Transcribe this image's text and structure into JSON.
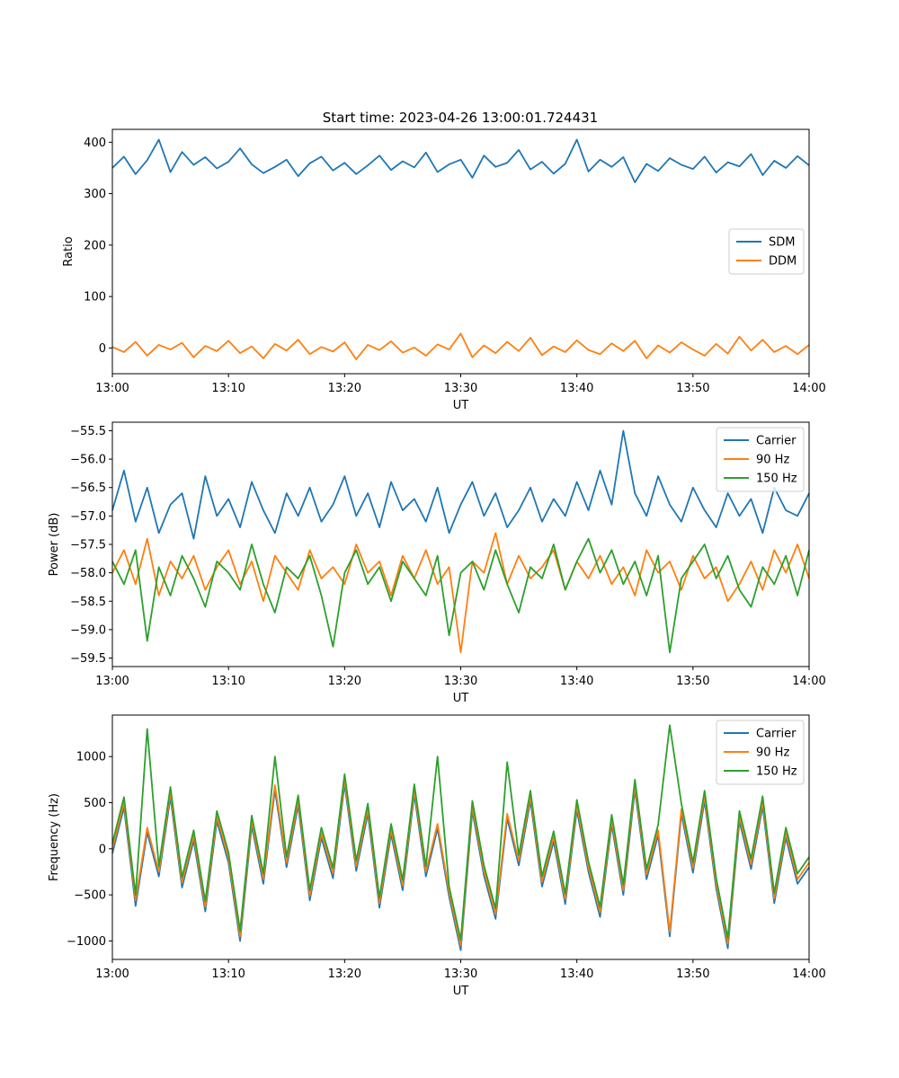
{
  "figure": {
    "title": "Start time: 2023-04-26 13:00:01.724431"
  },
  "colors": {
    "blue": "#1f77b4",
    "orange": "#ff7f0e",
    "green": "#2ca02c"
  },
  "chart_data": [
    {
      "type": "line",
      "title": "Start time: 2023-04-26 13:00:01.724431",
      "xlabel": "UT",
      "ylabel": "Ratio",
      "xlim": [
        "13:00",
        "14:00"
      ],
      "xticks": [
        "13:00",
        "13:10",
        "13:20",
        "13:30",
        "13:40",
        "13:50",
        "14:00"
      ],
      "ylim": [
        -50,
        425
      ],
      "yticks": [
        0,
        100,
        200,
        300,
        400
      ],
      "grid": false,
      "legend": "center-right",
      "x": [
        "13:00",
        "13:01",
        "13:02",
        "13:03",
        "13:04",
        "13:05",
        "13:06",
        "13:07",
        "13:08",
        "13:09",
        "13:10",
        "13:11",
        "13:12",
        "13:13",
        "13:14",
        "13:15",
        "13:16",
        "13:17",
        "13:18",
        "13:19",
        "13:20",
        "13:21",
        "13:22",
        "13:23",
        "13:24",
        "13:25",
        "13:26",
        "13:27",
        "13:28",
        "13:29",
        "13:30",
        "13:31",
        "13:32",
        "13:33",
        "13:34",
        "13:35",
        "13:36",
        "13:37",
        "13:38",
        "13:39",
        "13:40",
        "13:41",
        "13:42",
        "13:43",
        "13:44",
        "13:45",
        "13:46",
        "13:47",
        "13:48",
        "13:49",
        "13:50",
        "13:51",
        "13:52",
        "13:53",
        "13:54",
        "13:55",
        "13:56",
        "13:57",
        "13:58",
        "13:59",
        "14:00"
      ],
      "series": [
        {
          "name": "SDM",
          "color": "#1f77b4",
          "values": [
            350,
            372,
            338,
            365,
            405,
            342,
            381,
            356,
            371,
            349,
            362,
            388,
            357,
            340,
            352,
            366,
            334,
            359,
            372,
            345,
            360,
            338,
            355,
            374,
            346,
            363,
            351,
            380,
            342,
            357,
            366,
            331,
            374,
            352,
            360,
            385,
            347,
            362,
            339,
            358,
            405,
            343,
            366,
            352,
            371,
            322,
            358,
            344,
            369,
            356,
            348,
            372,
            341,
            361,
            353,
            377,
            336,
            364,
            350,
            373,
            355
          ]
        },
        {
          "name": "DDM",
          "color": "#ff7f0e",
          "values": [
            2,
            -8,
            12,
            -15,
            6,
            -3,
            10,
            -18,
            4,
            -6,
            14,
            -10,
            3,
            -20,
            8,
            -5,
            16,
            -12,
            2,
            -7,
            11,
            -22,
            6,
            -4,
            13,
            -9,
            1,
            -15,
            7,
            -3,
            28,
            -18,
            5,
            -10,
            12,
            -6,
            20,
            -14,
            3,
            -8,
            15,
            -4,
            -12,
            9,
            -6,
            14,
            -20,
            5,
            -9,
            11,
            -3,
            -15,
            8,
            -11,
            22,
            -5,
            16,
            -8,
            4,
            -12,
            6
          ]
        }
      ]
    },
    {
      "type": "line",
      "xlabel": "UT",
      "ylabel": "Power (dB)",
      "xlim": [
        "13:00",
        "14:00"
      ],
      "xticks": [
        "13:00",
        "13:10",
        "13:20",
        "13:30",
        "13:40",
        "13:50",
        "14:00"
      ],
      "ylim": [
        -59.65,
        -55.35
      ],
      "yticks": [
        -55.5,
        -56.0,
        -56.5,
        -57.0,
        -57.5,
        -58.0,
        -58.5,
        -59.0,
        -59.5
      ],
      "grid": false,
      "legend": "top-right",
      "x": [
        "13:00",
        "13:01",
        "13:02",
        "13:03",
        "13:04",
        "13:05",
        "13:06",
        "13:07",
        "13:08",
        "13:09",
        "13:10",
        "13:11",
        "13:12",
        "13:13",
        "13:14",
        "13:15",
        "13:16",
        "13:17",
        "13:18",
        "13:19",
        "13:20",
        "13:21",
        "13:22",
        "13:23",
        "13:24",
        "13:25",
        "13:26",
        "13:27",
        "13:28",
        "13:29",
        "13:30",
        "13:31",
        "13:32",
        "13:33",
        "13:34",
        "13:35",
        "13:36",
        "13:37",
        "13:38",
        "13:39",
        "13:40",
        "13:41",
        "13:42",
        "13:43",
        "13:44",
        "13:45",
        "13:46",
        "13:47",
        "13:48",
        "13:49",
        "13:50",
        "13:51",
        "13:52",
        "13:53",
        "13:54",
        "13:55",
        "13:56",
        "13:57",
        "13:58",
        "13:59",
        "14:00"
      ],
      "series": [
        {
          "name": "Carrier",
          "color": "#1f77b4",
          "values": [
            -56.9,
            -56.2,
            -57.1,
            -56.5,
            -57.3,
            -56.8,
            -56.6,
            -57.4,
            -56.3,
            -57.0,
            -56.7,
            -57.2,
            -56.4,
            -56.9,
            -57.3,
            -56.6,
            -57.0,
            -56.5,
            -57.1,
            -56.8,
            -56.3,
            -57.0,
            -56.6,
            -57.2,
            -56.4,
            -56.9,
            -56.7,
            -57.1,
            -56.5,
            -57.3,
            -56.8,
            -56.4,
            -57.0,
            -56.6,
            -57.2,
            -56.9,
            -56.5,
            -57.1,
            -56.7,
            -57.0,
            -56.4,
            -56.9,
            -56.2,
            -56.8,
            -55.5,
            -56.6,
            -57.0,
            -56.3,
            -56.8,
            -57.1,
            -56.5,
            -56.9,
            -57.2,
            -56.6,
            -57.0,
            -56.7,
            -57.3,
            -56.5,
            -56.9,
            -57.0,
            -56.6
          ]
        },
        {
          "name": "90 Hz",
          "color": "#ff7f0e",
          "values": [
            -58.0,
            -57.6,
            -58.2,
            -57.4,
            -58.4,
            -57.8,
            -58.1,
            -57.7,
            -58.3,
            -57.9,
            -57.6,
            -58.2,
            -57.8,
            -58.5,
            -57.7,
            -58.0,
            -58.3,
            -57.6,
            -58.1,
            -57.9,
            -58.2,
            -57.5,
            -58.0,
            -57.8,
            -58.4,
            -57.7,
            -58.1,
            -57.6,
            -58.2,
            -57.9,
            -59.4,
            -57.8,
            -58.0,
            -57.3,
            -58.2,
            -57.7,
            -58.1,
            -57.9,
            -57.6,
            -58.3,
            -57.8,
            -58.1,
            -57.7,
            -58.2,
            -57.9,
            -58.4,
            -57.6,
            -58.0,
            -57.8,
            -58.3,
            -57.7,
            -58.1,
            -57.9,
            -58.5,
            -58.2,
            -57.8,
            -58.3,
            -57.6,
            -58.0,
            -57.5,
            -58.1
          ]
        },
        {
          "name": "150 Hz",
          "color": "#2ca02c",
          "values": [
            -57.8,
            -58.2,
            -57.6,
            -59.2,
            -57.9,
            -58.4,
            -57.7,
            -58.1,
            -58.6,
            -57.8,
            -58.0,
            -58.3,
            -57.5,
            -58.2,
            -58.7,
            -57.9,
            -58.1,
            -57.7,
            -58.4,
            -59.3,
            -58.0,
            -57.6,
            -58.2,
            -57.9,
            -58.5,
            -57.8,
            -58.1,
            -58.4,
            -57.7,
            -59.1,
            -58.0,
            -57.8,
            -58.3,
            -57.6,
            -58.2,
            -58.7,
            -57.9,
            -58.1,
            -57.5,
            -58.3,
            -57.8,
            -57.4,
            -58.0,
            -57.6,
            -58.2,
            -57.8,
            -58.4,
            -57.7,
            -59.4,
            -58.1,
            -57.8,
            -57.5,
            -58.1,
            -57.7,
            -58.3,
            -58.6,
            -57.9,
            -58.2,
            -57.7,
            -58.4,
            -57.6
          ]
        }
      ]
    },
    {
      "type": "line",
      "xlabel": "UT",
      "ylabel": "Frequency (Hz)",
      "xlim": [
        "13:00",
        "14:00"
      ],
      "xticks": [
        "13:00",
        "13:10",
        "13:20",
        "13:30",
        "13:40",
        "13:50",
        "14:00"
      ],
      "ylim": [
        -1200,
        1450
      ],
      "yticks": [
        -1000,
        -500,
        0,
        500,
        1000
      ],
      "grid": false,
      "legend": "top-right",
      "x": [
        "13:00",
        "13:01",
        "13:02",
        "13:03",
        "13:04",
        "13:05",
        "13:06",
        "13:07",
        "13:08",
        "13:09",
        "13:10",
        "13:11",
        "13:12",
        "13:13",
        "13:14",
        "13:15",
        "13:16",
        "13:17",
        "13:18",
        "13:19",
        "13:20",
        "13:21",
        "13:22",
        "13:23",
        "13:24",
        "13:25",
        "13:26",
        "13:27",
        "13:28",
        "13:29",
        "13:30",
        "13:31",
        "13:32",
        "13:33",
        "13:34",
        "13:35",
        "13:36",
        "13:37",
        "13:38",
        "13:39",
        "13:40",
        "13:41",
        "13:42",
        "13:43",
        "13:44",
        "13:45",
        "13:46",
        "13:47",
        "13:48",
        "13:49",
        "13:50",
        "13:51",
        "13:52",
        "13:53",
        "13:54",
        "13:55",
        "13:56",
        "13:57",
        "13:58",
        "13:59",
        "14:00"
      ],
      "series": [
        {
          "name": "Carrier",
          "color": "#1f77b4",
          "values": [
            -50,
            450,
            -620,
            180,
            -300,
            560,
            -420,
            90,
            -680,
            300,
            -150,
            -1000,
            250,
            -380,
            640,
            -200,
            470,
            -560,
            120,
            -320,
            700,
            -240,
            380,
            -640,
            160,
            -450,
            590,
            -300,
            220,
            -520,
            -1100,
            410,
            -290,
            -760,
            330,
            -180,
            520,
            -410,
            80,
            -600,
            420,
            -250,
            -740,
            260,
            -500,
            640,
            -330,
            150,
            -950,
            380,
            -260,
            520,
            -430,
            -1080,
            300,
            -220,
            460,
            -590,
            120,
            -380,
            -200
          ]
        },
        {
          "name": "90 Hz",
          "color": "#ff7f0e",
          "values": [
            0,
            500,
            -560,
            230,
            -250,
            610,
            -370,
            140,
            -630,
            350,
            -100,
            -950,
            300,
            -330,
            690,
            -150,
            520,
            -510,
            170,
            -270,
            750,
            -190,
            430,
            -590,
            210,
            -400,
            640,
            -250,
            270,
            -470,
            -1050,
            460,
            -240,
            -710,
            380,
            -130,
            570,
            -360,
            130,
            -550,
            470,
            -200,
            -690,
            310,
            -450,
            690,
            -280,
            200,
            -900,
            430,
            -210,
            570,
            -380,
            -1030,
            350,
            -170,
            510,
            -540,
            170,
            -330,
            -150
          ]
        },
        {
          "name": "150 Hz",
          "color": "#2ca02c",
          "values": [
            60,
            560,
            -500,
            1300,
            -190,
            670,
            -310,
            200,
            -570,
            410,
            -40,
            -890,
            360,
            -270,
            1000,
            -90,
            580,
            -450,
            230,
            -210,
            810,
            -130,
            490,
            -530,
            270,
            -340,
            700,
            -190,
            1000,
            -410,
            -990,
            520,
            -180,
            -650,
            940,
            -70,
            630,
            -300,
            190,
            -490,
            530,
            -140,
            -630,
            370,
            -390,
            750,
            -220,
            260,
            1340,
            490,
            -150,
            630,
            -320,
            -970,
            410,
            -110,
            570,
            -480,
            230,
            -270,
            -90
          ]
        }
      ]
    }
  ]
}
